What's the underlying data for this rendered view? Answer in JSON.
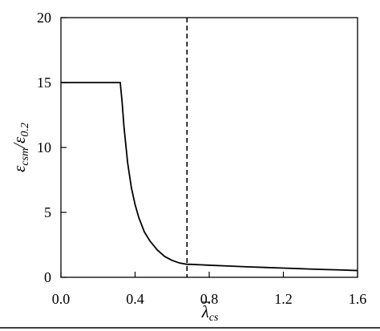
{
  "chart_data": {
    "type": "line",
    "title": "",
    "xlabel": {
      "main": "λ",
      "sub": "cs"
    },
    "ylabel": {
      "num_main": "ε",
      "num_sub": "csm",
      "slash": "/",
      "den_main": "ε",
      "den_sub": "0.2"
    },
    "xlim": [
      0,
      1.6
    ],
    "ylim": [
      0,
      20
    ],
    "xticks": [
      0.0,
      0.4,
      0.8,
      1.2,
      1.6
    ],
    "xtick_labels": [
      "0.0",
      "0.4",
      "0.8",
      "1.2",
      "1.6"
    ],
    "yticks": [
      0,
      5,
      10,
      15,
      20
    ],
    "ytick_labels": [
      "0",
      "5",
      "10",
      "15",
      "20"
    ],
    "grid": false,
    "series": [
      {
        "x": [
          0.0,
          0.32,
          0.33,
          0.34,
          0.36,
          0.38,
          0.4,
          0.42,
          0.45,
          0.48,
          0.52,
          0.56,
          0.6,
          0.64,
          0.68,
          0.7,
          0.8,
          0.9,
          1.0,
          1.1,
          1.2,
          1.3,
          1.4,
          1.5,
          1.6
        ],
        "y": [
          15.0,
          15.0,
          13.5,
          11.6,
          8.8,
          6.9,
          5.6,
          4.6,
          3.5,
          2.8,
          2.1,
          1.6,
          1.3,
          1.1,
          1.0,
          1.0,
          0.93,
          0.87,
          0.81,
          0.76,
          0.71,
          0.66,
          0.61,
          0.57,
          0.52
        ],
        "color": "#000000",
        "style": "solid"
      }
    ],
    "reference_lines": [
      {
        "orientation": "vertical",
        "x": 0.68,
        "style": "dashed",
        "color": "#000000"
      }
    ]
  }
}
